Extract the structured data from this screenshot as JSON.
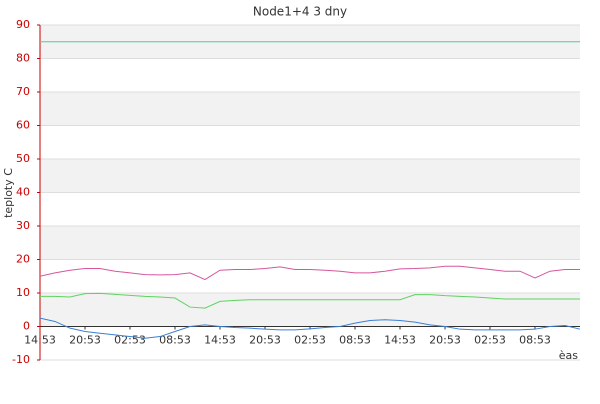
{
  "chart_data": {
    "type": "line",
    "title": "Node1+4 3 dny",
    "ylabel": "teploty C",
    "xlabel": "èas",
    "x": [
      0,
      2,
      4,
      6,
      8,
      10,
      12,
      14,
      16,
      18,
      20,
      22,
      24,
      26,
      28,
      30,
      32,
      34,
      36,
      38,
      40,
      42,
      44,
      46,
      48,
      50,
      52,
      54,
      56,
      58,
      60,
      62,
      64,
      66,
      68,
      70,
      72
    ],
    "xlim": [
      0,
      72
    ],
    "xticks": [
      {
        "value": 0,
        "label": "14:53"
      },
      {
        "value": 6,
        "label": "20:53"
      },
      {
        "value": 12,
        "label": "02:53"
      },
      {
        "value": 18,
        "label": "08:53"
      },
      {
        "value": 24,
        "label": "14:53"
      },
      {
        "value": 30,
        "label": "20:53"
      },
      {
        "value": 36,
        "label": "02:53"
      },
      {
        "value": 42,
        "label": "08:53"
      },
      {
        "value": 48,
        "label": "14:53"
      },
      {
        "value": 54,
        "label": "20:53"
      },
      {
        "value": 60,
        "label": "02:53"
      },
      {
        "value": 66,
        "label": "08:53"
      }
    ],
    "ylim": [
      -10,
      90
    ],
    "yticks": [
      -10,
      0,
      10,
      20,
      30,
      40,
      50,
      60,
      70,
      80,
      90
    ],
    "grid": true,
    "series": [
      {
        "color": "#55cc88",
        "values": [
          85,
          85,
          85,
          85,
          85,
          85,
          85,
          85,
          85,
          85,
          85,
          85,
          85,
          85,
          85,
          85,
          85,
          85,
          85,
          85,
          85,
          85,
          85,
          85,
          85,
          85,
          85,
          85,
          85,
          85,
          85,
          85,
          85,
          85,
          85,
          85,
          85
        ]
      },
      {
        "color": "#d6569e",
        "values": [
          15,
          16,
          16.8,
          17.3,
          17.3,
          16.5,
          16,
          15.5,
          15.4,
          15.5,
          16,
          14,
          16.8,
          17,
          17,
          17.3,
          17.8,
          17,
          17,
          16.8,
          16.5,
          16,
          16,
          16.5,
          17.2,
          17.3,
          17.5,
          18,
          18,
          17.5,
          17,
          16.5,
          16.5,
          14.5,
          16.5,
          17,
          17
        ]
      },
      {
        "color": "#5fd35f",
        "values": [
          9,
          9,
          8.8,
          9.8,
          9.9,
          9.6,
          9.3,
          9,
          8.8,
          8.5,
          5.8,
          5.5,
          7.5,
          7.8,
          8,
          8,
          8,
          8,
          8,
          8,
          8,
          8,
          8,
          8,
          8,
          9.5,
          9.5,
          9.2,
          9,
          8.8,
          8.5,
          8.2,
          8.2,
          8.2,
          8.2,
          8.2,
          8.2
        ]
      },
      {
        "color": "#3a7fd5",
        "values": [
          2.5,
          1.5,
          -0.5,
          -1.5,
          -2,
          -2.5,
          -3,
          -3.5,
          -3,
          -1.5,
          0,
          0.5,
          0,
          -0.3,
          -0.5,
          -0.8,
          -1,
          -1,
          -0.7,
          -0.3,
          0,
          1,
          1.8,
          2,
          1.8,
          1.3,
          0.5,
          0,
          -0.8,
          -1,
          -1,
          -1,
          -1,
          -0.8,
          0,
          0.3,
          -0.8
        ]
      }
    ]
  }
}
